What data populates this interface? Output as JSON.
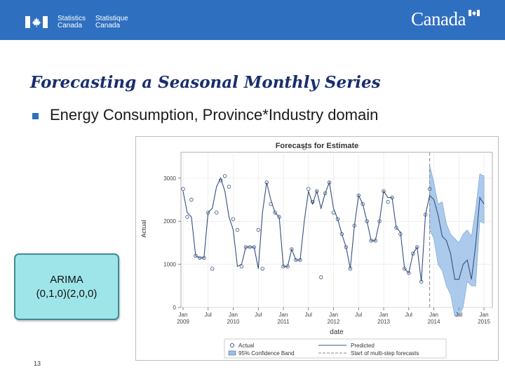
{
  "header": {
    "org_en_line1": "Statistics",
    "org_en_line2": "Canada",
    "org_fr_line1": "Statistique",
    "org_fr_line2": "Canada",
    "wordmark": "Canada",
    "bg_color": "#2f6fc0"
  },
  "slide": {
    "title": "Forecasting a Seasonal Monthly Series",
    "bullet": "Energy Consumption, Province*Industry domain",
    "model_line1": "ARIMA",
    "model_line2": "(0,1,0)(2,0,0)",
    "page_number": "13"
  },
  "chart_data": {
    "type": "line",
    "title": "Forecasts for Estimate",
    "xlabel": "date",
    "ylabel": "Actual",
    "ylim": [
      0,
      3600
    ],
    "yticks": [
      "0",
      "1000",
      "2000",
      "3000"
    ],
    "ytick_values": [
      0,
      1000,
      2000,
      3000
    ],
    "xticks": [
      {
        "m": 0,
        "line1": "Jan",
        "line2": "2009"
      },
      {
        "m": 6,
        "line1": "Jul",
        "line2": ""
      },
      {
        "m": 12,
        "line1": "Jan",
        "line2": "2010"
      },
      {
        "m": 18,
        "line1": "Jul",
        "line2": ""
      },
      {
        "m": 24,
        "line1": "Jan",
        "line2": "2011"
      },
      {
        "m": 30,
        "line1": "Jul",
        "line2": ""
      },
      {
        "m": 36,
        "line1": "Jan",
        "line2": "2012"
      },
      {
        "m": 42,
        "line1": "Jul",
        "line2": ""
      },
      {
        "m": 48,
        "line1": "Jan",
        "line2": "2013"
      },
      {
        "m": 54,
        "line1": "Jul",
        "line2": ""
      },
      {
        "m": 60,
        "line1": "Jan",
        "line2": "2014"
      },
      {
        "m": 66,
        "line1": "Jul",
        "line2": ""
      },
      {
        "m": 72,
        "line1": "Jan",
        "line2": "2015"
      }
    ],
    "x_range_months": [
      -0.5,
      74
    ],
    "forecast_start_month": 59,
    "actual": [
      2750,
      2100,
      2500,
      1200,
      1150,
      1150,
      2200,
      900,
      2200,
      2950,
      3050,
      2800,
      2050,
      1800,
      950,
      1400,
      1400,
      1400,
      1800,
      900,
      2900,
      2400,
      2200,
      2100,
      950,
      950,
      1350,
      1100,
      1100,
      3700,
      2750,
      2450,
      2700,
      700,
      2650,
      2900,
      2200,
      2050,
      1700,
      1400,
      900,
      1900,
      2600,
      2400,
      2000,
      1550,
      1550,
      2000,
      2700,
      2450,
      2550,
      1850,
      1700,
      900,
      800,
      1250,
      1400,
      600,
      2150,
      2750
    ],
    "predicted": [
      2700,
      2200,
      2100,
      1200,
      1150,
      1150,
      2200,
      2300,
      2800,
      3000,
      2700,
      2100,
      1800,
      950,
      1000,
      1400,
      1400,
      1400,
      900,
      2200,
      2900,
      2500,
      2200,
      2100,
      950,
      950,
      1350,
      1100,
      1100,
      2000,
      2700,
      2400,
      2700,
      2300,
      2650,
      2900,
      2300,
      2050,
      1700,
      1400,
      900,
      1900,
      2600,
      2400,
      2000,
      1550,
      1550,
      2000,
      2700,
      2550,
      2550,
      1850,
      1750,
      900,
      800,
      1250,
      1400,
      600,
      2150,
      2600,
      2500,
      2150,
      1650,
      1550,
      1250,
      650,
      650,
      1000,
      1100,
      650,
      1450,
      2550,
      2400
    ],
    "ci_upper": [
      3300,
      2900,
      2400,
      2450,
      1950,
      1700,
      1600,
      1500,
      1700,
      1800,
      1650,
      2300,
      3100,
      3050
    ],
    "ci_lower": [
      1800,
      1600,
      1000,
      850,
      500,
      300,
      -400,
      -300,
      0,
      600,
      500,
      500,
      2000,
      1950
    ],
    "legend": [
      "Actual",
      "Predicted",
      "95% Confidence Band",
      "Start of multi-step forecasts"
    ],
    "colors": {
      "line": "#35507e",
      "marker": "#35507e",
      "band": "#9ec1e8",
      "axis": "#666666",
      "grid": "#e8e8e8"
    }
  }
}
